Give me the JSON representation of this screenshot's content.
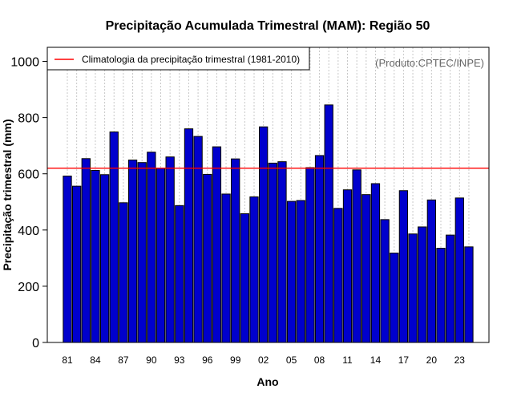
{
  "chart_data": {
    "type": "bar",
    "title": "Precipitação Acumulada Trimestral (MAM): Região 50",
    "xlabel": "Ano",
    "ylabel": "Precipitação trimestral (mm)",
    "ylim": [
      0,
      1050
    ],
    "yticks": [
      0,
      200,
      400,
      600,
      800,
      1000
    ],
    "xtick_labels": [
      "81",
      "84",
      "87",
      "90",
      "93",
      "96",
      "99",
      "02",
      "05",
      "08",
      "11",
      "14",
      "17",
      "20",
      "23"
    ],
    "categories": [
      "1981",
      "1982",
      "1983",
      "1984",
      "1985",
      "1986",
      "1987",
      "1988",
      "1989",
      "1990",
      "1991",
      "1992",
      "1993",
      "1994",
      "1995",
      "1996",
      "1997",
      "1998",
      "1999",
      "2000",
      "2001",
      "2002",
      "2003",
      "2004",
      "2005",
      "2006",
      "2007",
      "2008",
      "2009",
      "2010",
      "2011",
      "2012",
      "2013",
      "2014",
      "2015",
      "2016",
      "2017",
      "2018",
      "2019",
      "2020",
      "2021",
      "2022",
      "2023",
      "2024"
    ],
    "values": [
      592,
      556,
      654,
      612,
      597,
      749,
      497,
      649,
      640,
      677,
      620,
      660,
      487,
      760,
      733,
      598,
      696,
      528,
      653,
      458,
      518,
      767,
      638,
      643,
      502,
      505,
      622,
      665,
      845,
      477,
      543,
      614,
      526,
      565,
      437,
      318,
      540,
      386,
      411,
      507,
      335,
      382,
      514,
      340
    ],
    "climatology": 620,
    "legend": {
      "label": "Climatologia da precipitação trimestral (1981-2010)",
      "position": "top-left"
    },
    "credit": "(Produto:CPTEC/INPE)",
    "grid": "vertical-dotted",
    "colors": {
      "bar": "#0000cd",
      "line": "#ff0000",
      "grid": "#c8c8c8"
    }
  }
}
